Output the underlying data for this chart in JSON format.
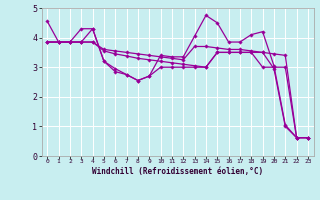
{
  "xlabel": "Windchill (Refroidissement éolien,°C)",
  "ylabel": "",
  "background_color": "#c8eef0",
  "grid_color": "#e8e8ff",
  "line_color": "#990099",
  "xlim": [
    -0.5,
    23.5
  ],
  "ylim": [
    0,
    5
  ],
  "xtick_labels": [
    "0",
    "1",
    "2",
    "3",
    "4",
    "5",
    "6",
    "7",
    "8",
    "9",
    "10",
    "11",
    "12",
    "13",
    "14",
    "15",
    "16",
    "17",
    "18",
    "19",
    "20",
    "21",
    "22",
    "23"
  ],
  "ytick_labels": [
    "0",
    "1",
    "2",
    "3",
    "4",
    "5"
  ],
  "lines": [
    [
      4.55,
      3.85,
      3.85,
      4.3,
      4.3,
      3.2,
      2.85,
      2.75,
      2.55,
      2.7,
      3.4,
      3.35,
      3.35,
      4.05,
      4.75,
      4.5,
      3.85,
      3.85,
      4.1,
      4.2,
      3.05,
      1.05,
      0.62,
      0.62
    ],
    [
      3.85,
      3.85,
      3.85,
      3.85,
      3.85,
      3.6,
      3.55,
      3.5,
      3.45,
      3.4,
      3.35,
      3.3,
      3.25,
      3.7,
      3.7,
      3.65,
      3.6,
      3.6,
      3.55,
      3.5,
      2.95,
      1.0,
      0.62,
      0.62
    ],
    [
      3.85,
      3.85,
      3.85,
      3.85,
      3.85,
      3.55,
      3.45,
      3.38,
      3.3,
      3.25,
      3.2,
      3.15,
      3.1,
      3.05,
      3.0,
      3.5,
      3.5,
      3.5,
      3.5,
      3.5,
      3.45,
      3.4,
      0.62,
      0.62
    ],
    [
      3.85,
      3.85,
      3.85,
      3.85,
      4.3,
      3.2,
      2.95,
      2.75,
      2.55,
      2.7,
      3.0,
      3.0,
      3.0,
      3.0,
      3.0,
      3.5,
      3.5,
      3.5,
      3.5,
      3.0,
      3.0,
      3.0,
      0.62,
      0.62
    ]
  ]
}
